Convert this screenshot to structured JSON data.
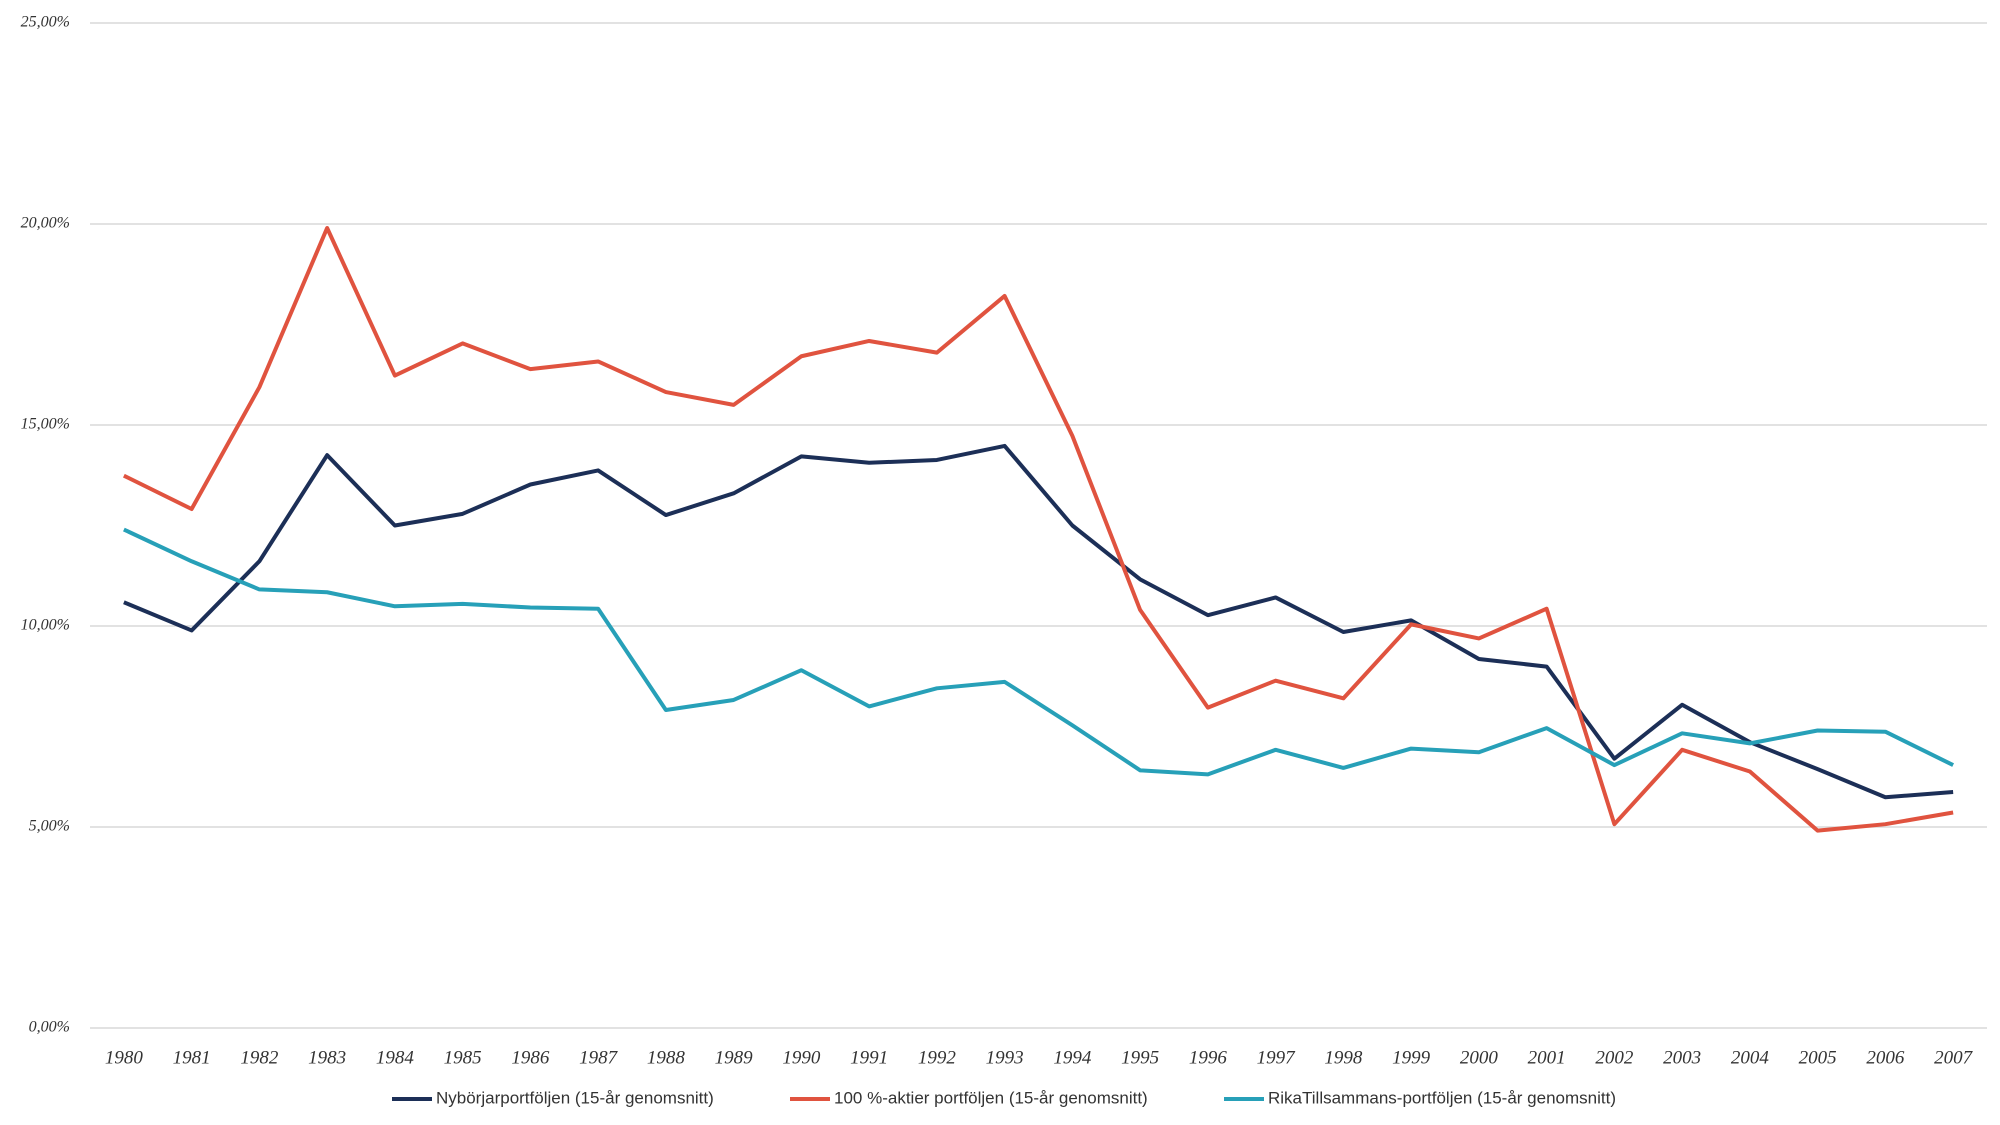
{
  "chart_data": {
    "type": "line",
    "categories": [
      "1980",
      "1981",
      "1982",
      "1983",
      "1984",
      "1985",
      "1986",
      "1987",
      "1988",
      "1989",
      "1990",
      "1991",
      "1992",
      "1993",
      "1994",
      "1995",
      "1996",
      "1997",
      "1998",
      "1999",
      "2000",
      "2001",
      "2002",
      "2003",
      "2004",
      "2005",
      "2006",
      "2007"
    ],
    "series": [
      {
        "name": "Nybörjarportföljen (15-år genomsnitt)",
        "color": "#1c2f57",
        "values": [
          10.59,
          9.89,
          11.61,
          14.25,
          12.5,
          12.79,
          13.52,
          13.87,
          12.76,
          13.3,
          14.22,
          14.06,
          14.13,
          14.48,
          12.5,
          11.16,
          10.27,
          10.71,
          9.85,
          10.14,
          9.18,
          8.99,
          6.7,
          8.04,
          7.11,
          6.44,
          5.74,
          5.87
        ]
      },
      {
        "name": "100 %-aktier portföljen (15-år genomsnitt)",
        "color": "#e0533f",
        "values": [
          13.74,
          12.91,
          15.94,
          19.9,
          16.23,
          17.03,
          16.39,
          16.58,
          15.82,
          15.5,
          16.71,
          17.09,
          16.8,
          18.21,
          14.73,
          10.4,
          7.97,
          8.64,
          8.2,
          10.04,
          9.69,
          10.43,
          5.07,
          6.92,
          6.38,
          4.91,
          5.07,
          5.36
        ]
      },
      {
        "name": "RikaTillsammans-portföljen (15-år genomsnitt)",
        "color": "#27a0b8",
        "values": [
          12.4,
          11.61,
          10.91,
          10.84,
          10.49,
          10.55,
          10.46,
          10.43,
          7.91,
          8.16,
          8.9,
          8.0,
          8.45,
          8.61,
          7.53,
          6.41,
          6.31,
          6.92,
          6.47,
          6.95,
          6.86,
          7.46,
          6.54,
          7.33,
          7.08,
          7.4,
          7.37,
          6.54
        ]
      }
    ],
    "ylim": [
      0,
      25
    ],
    "yticks": [
      {
        "value": 0,
        "label": "0,00%"
      },
      {
        "value": 5,
        "label": "5,00%"
      },
      {
        "value": 10,
        "label": "10,00%"
      },
      {
        "value": 15,
        "label": "15,00%"
      },
      {
        "value": 20,
        "label": "20,00%"
      },
      {
        "value": 25,
        "label": "25,00%"
      }
    ],
    "grid": true,
    "legend": "bottom"
  }
}
